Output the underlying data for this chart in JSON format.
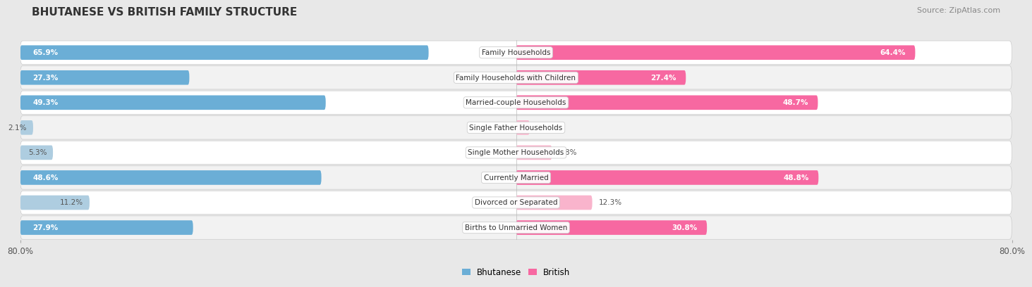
{
  "title": "BHUTANESE VS BRITISH FAMILY STRUCTURE",
  "source": "Source: ZipAtlas.com",
  "categories": [
    "Family Households",
    "Family Households with Children",
    "Married-couple Households",
    "Single Father Households",
    "Single Mother Households",
    "Currently Married",
    "Divorced or Separated",
    "Births to Unmarried Women"
  ],
  "bhutanese_values": [
    65.9,
    27.3,
    49.3,
    2.1,
    5.3,
    48.6,
    11.2,
    27.9
  ],
  "british_values": [
    64.4,
    27.4,
    48.7,
    2.2,
    5.8,
    48.8,
    12.3,
    30.8
  ],
  "bhutanese_color_strong": "#6baed6",
  "british_color_strong": "#f768a1",
  "bhutanese_color_light": "#aecde0",
  "british_color_light": "#f9b4cc",
  "axis_max": 80.0,
  "bg_color": "#e8e8e8",
  "row_bg": "#ffffff",
  "row_alt_bg": "#f2f2f2",
  "label_threshold": 20
}
